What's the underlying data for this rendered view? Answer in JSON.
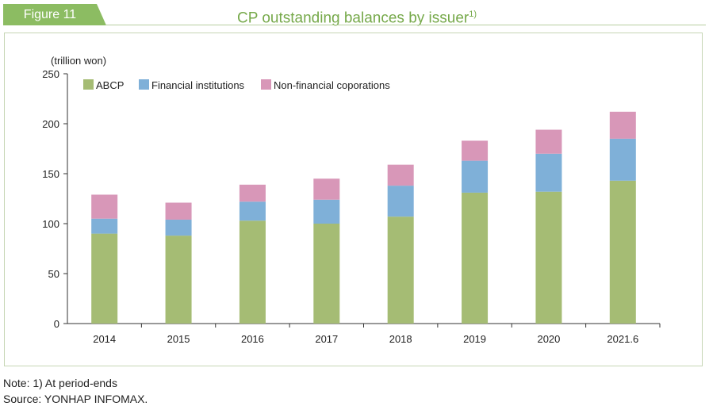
{
  "figure": {
    "tab_label": "Figure 11",
    "title": "CP outstanding balances by issuer",
    "title_superscript": "1)"
  },
  "colors": {
    "accent": "#8cbc62",
    "title": "#76a94a",
    "frame": "#c6d6b4"
  },
  "chart_data": {
    "type": "bar",
    "stacked": true,
    "unit_label": "(trillion won)",
    "categories": [
      "2014",
      "2015",
      "2016",
      "2017",
      "2018",
      "2019",
      "2020",
      "2021.6"
    ],
    "series": [
      {
        "name": "ABCP",
        "color": "#a5bc74",
        "values": [
          90,
          88,
          103,
          100,
          107,
          131,
          132,
          143
        ]
      },
      {
        "name": "Financial institutions",
        "color": "#7fb0d8",
        "values": [
          15,
          16,
          19,
          24,
          31,
          32,
          38,
          42
        ]
      },
      {
        "name": "Non-financial coporations",
        "color": "#d897b8",
        "values": [
          24,
          17,
          17,
          21,
          21,
          20,
          24,
          27
        ]
      }
    ],
    "yticks": [
      0,
      50,
      100,
      150,
      200,
      250
    ],
    "ylim": [
      0,
      250
    ],
    "legend_position": "top-left",
    "grid": false
  },
  "notes": {
    "note": "Note: 1) At period-ends",
    "source": "Source: YONHAP INFOMAX."
  }
}
